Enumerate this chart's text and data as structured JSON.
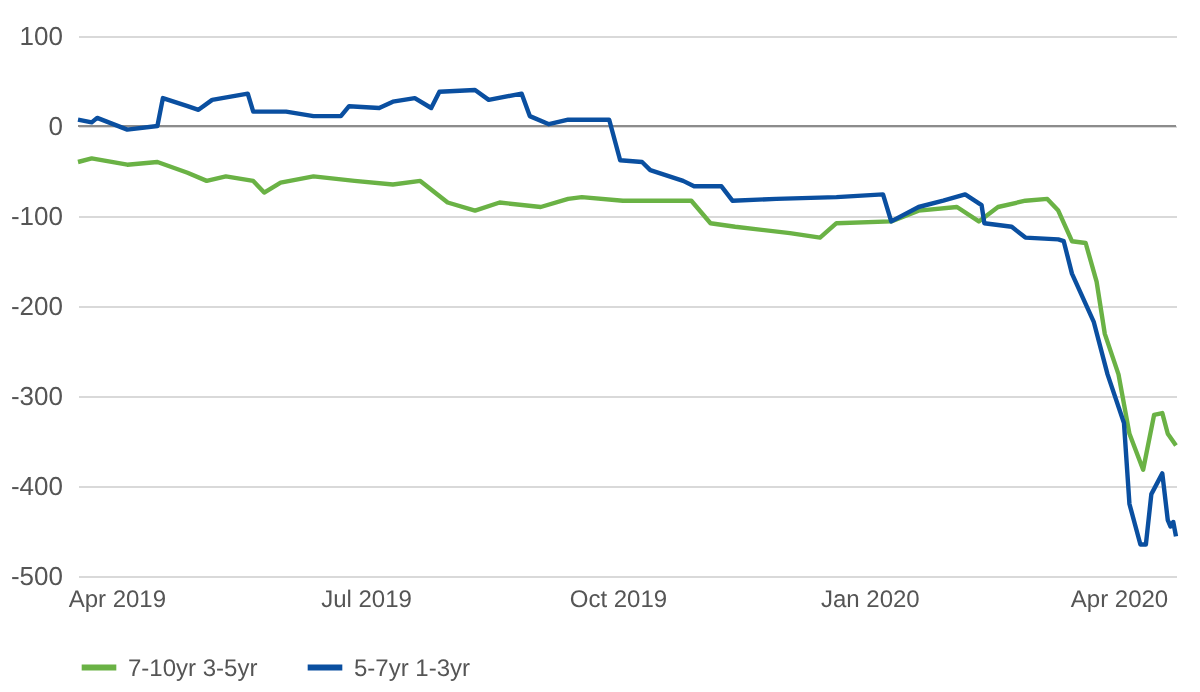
{
  "chart_data": {
    "type": "line",
    "legend": "bottom",
    "grid": "y",
    "xlim": [
      "2019-03-18",
      "2020-04-22"
    ],
    "xticks": [
      {
        "value": "2019-04-01",
        "label": "Apr 2019"
      },
      {
        "value": "2019-07-01",
        "label": "Jul 2019"
      },
      {
        "value": "2019-10-01",
        "label": "Oct 2019"
      },
      {
        "value": "2020-01-01",
        "label": "Jan 2020"
      },
      {
        "value": "2020-04-01",
        "label": "Apr 2020"
      }
    ],
    "ylim": [
      -500,
      100
    ],
    "yticks": [
      -500,
      -400,
      -300,
      -200,
      -100,
      0,
      100
    ],
    "ref_lines": [
      {
        "axis": "y",
        "value": 0,
        "color": "#8c8c8c"
      }
    ],
    "series": [
      {
        "name": "7-10yr 3-5yr",
        "color": "#6ab245",
        "x": [
          "2019-03-18",
          "2019-03-23",
          "2019-04-05",
          "2019-04-16",
          "2019-04-27",
          "2019-05-04",
          "2019-05-11",
          "2019-05-21",
          "2019-05-25",
          "2019-05-31",
          "2019-06-12",
          "2019-06-27",
          "2019-07-11",
          "2019-07-21",
          "2019-07-31",
          "2019-08-10",
          "2019-08-19",
          "2019-09-03",
          "2019-09-13",
          "2019-09-18",
          "2019-10-03",
          "2019-10-28",
          "2019-11-04",
          "2019-11-13",
          "2019-12-03",
          "2019-12-14",
          "2019-12-20",
          "2020-01-09",
          "2020-01-19",
          "2020-02-02",
          "2020-02-10",
          "2020-02-17",
          "2020-02-27",
          "2020-03-06",
          "2020-03-10",
          "2020-03-15",
          "2020-03-20",
          "2020-03-24",
          "2020-03-27",
          "2020-04-01",
          "2020-04-05",
          "2020-04-10",
          "2020-04-14",
          "2020-04-17",
          "2020-04-19",
          "2020-04-22"
        ],
        "values": [
          -40,
          -36,
          -43,
          -40,
          -52,
          -61,
          -56,
          -61,
          -74,
          -63,
          -56,
          -61,
          -65,
          -61,
          -85,
          -94,
          -85,
          -90,
          -81,
          -79,
          -83,
          -83,
          -108,
          -112,
          -119,
          -124,
          -108,
          -106,
          -94,
          -90,
          -106,
          -90,
          -83,
          -81,
          -94,
          -128,
          -130,
          -173,
          -231,
          -276,
          -342,
          -382,
          -321,
          -319,
          -342,
          -355
        ]
      },
      {
        "name": "5-7yr 1-3yr",
        "color": "#0a4fa0",
        "x": [
          "2019-03-18",
          "2019-03-23",
          "2019-03-25",
          "2019-04-05",
          "2019-04-16",
          "2019-04-18",
          "2019-04-27",
          "2019-05-01",
          "2019-05-06",
          "2019-05-19",
          "2019-05-21",
          "2019-06-02",
          "2019-06-12",
          "2019-06-22",
          "2019-06-25",
          "2019-07-06",
          "2019-07-11",
          "2019-07-19",
          "2019-07-25",
          "2019-07-28",
          "2019-08-10",
          "2019-08-15",
          "2019-08-27",
          "2019-08-30",
          "2019-09-06",
          "2019-09-13",
          "2019-09-28",
          "2019-10-02",
          "2019-10-10",
          "2019-10-13",
          "2019-10-25",
          "2019-10-29",
          "2019-11-08",
          "2019-11-12",
          "2019-11-28",
          "2019-12-20",
          "2020-01-06",
          "2020-01-09",
          "2020-01-19",
          "2020-01-28",
          "2020-02-05",
          "2020-02-11",
          "2020-02-12",
          "2020-02-22",
          "2020-02-27",
          "2020-03-10",
          "2020-03-12",
          "2020-03-15",
          "2020-03-23",
          "2020-03-28",
          "2020-04-03",
          "2020-04-05",
          "2020-04-09",
          "2020-04-11",
          "2020-04-13",
          "2020-04-17",
          "2020-04-19",
          "2020-04-20",
          "2020-04-21",
          "2020-04-22"
        ],
        "values": [
          7,
          4,
          9,
          -4,
          0,
          31,
          22,
          18,
          29,
          36,
          16,
          16,
          11,
          11,
          22,
          20,
          27,
          31,
          20,
          38,
          40,
          29,
          36,
          11,
          2,
          7,
          7,
          -38,
          -40,
          -49,
          -61,
          -67,
          -67,
          -83,
          -81,
          -79,
          -76,
          -106,
          -90,
          -83,
          -76,
          -88,
          -108,
          -112,
          -124,
          -126,
          -128,
          -164,
          -218,
          -276,
          -330,
          -420,
          -465,
          -465,
          -409,
          -386,
          -438,
          -445,
          -440,
          -456
        ]
      }
    ]
  }
}
